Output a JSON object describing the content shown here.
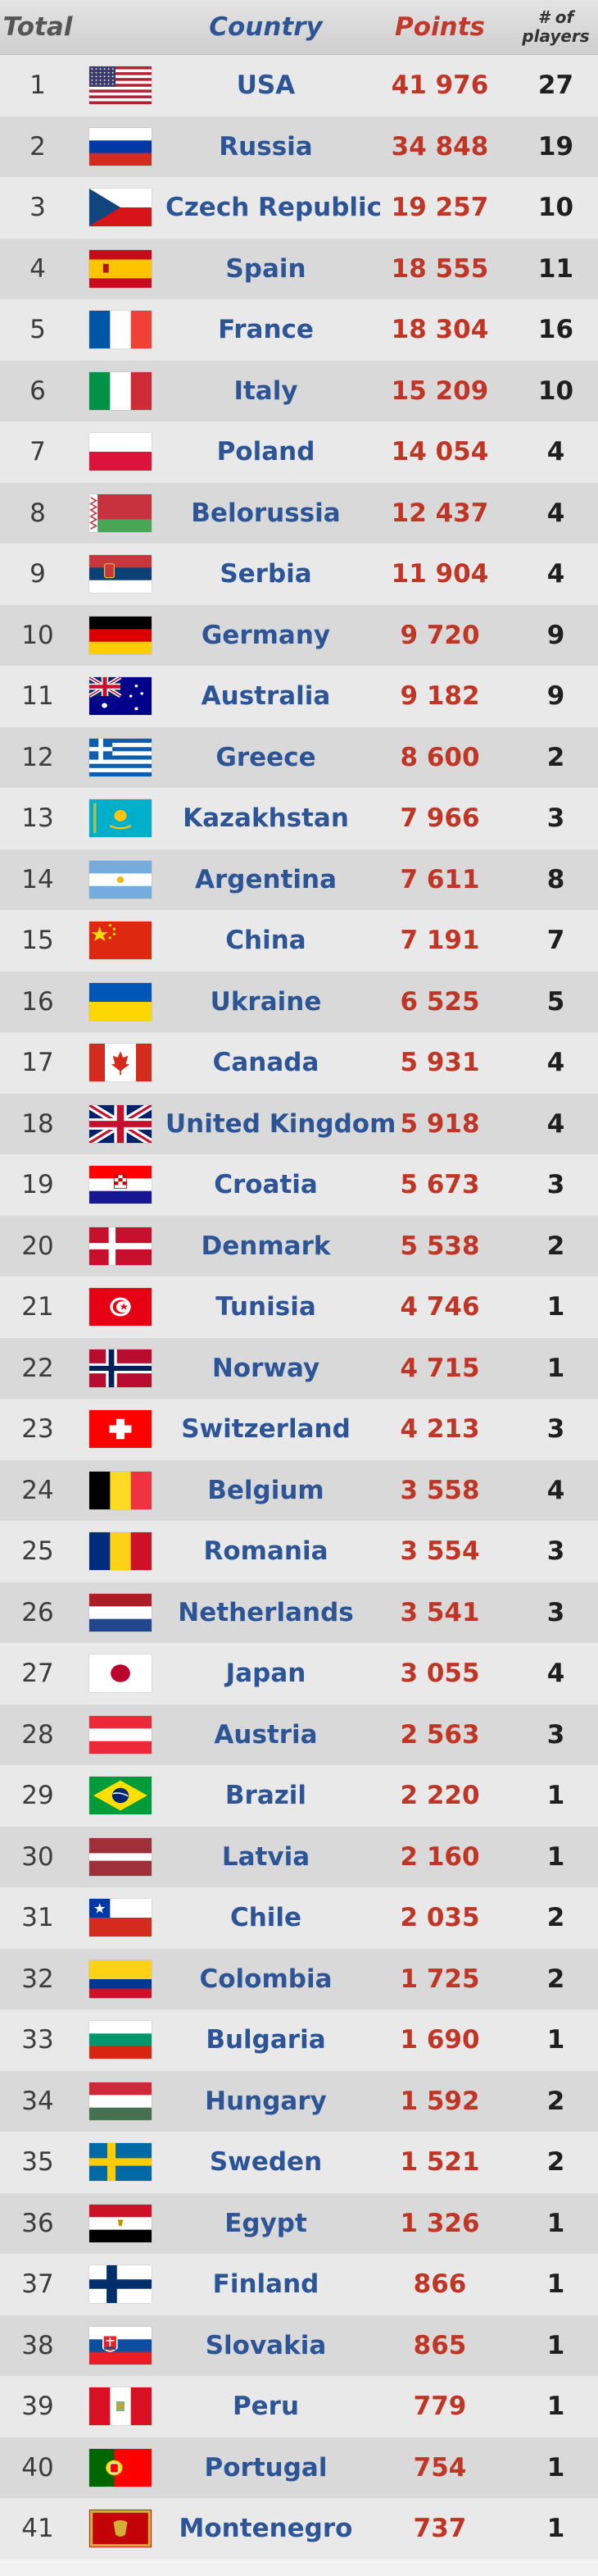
{
  "header": {
    "rank_label": "Total",
    "country_label": "Country",
    "points_label": "Points",
    "players_label": "# of\nplayers"
  },
  "rows": [
    {
      "rank": "1",
      "country": "USA",
      "points": "41 976",
      "players": "27",
      "flag": "usa-flag-icon"
    },
    {
      "rank": "2",
      "country": "Russia",
      "points": "34 848",
      "players": "19",
      "flag": "russia-flag-icon"
    },
    {
      "rank": "3",
      "country": "Czech Republic",
      "points": "19 257",
      "players": "10",
      "flag": "czech-republic-flag-icon"
    },
    {
      "rank": "4",
      "country": "Spain",
      "points": "18 555",
      "players": "11",
      "flag": "spain-flag-icon"
    },
    {
      "rank": "5",
      "country": "France",
      "points": "18 304",
      "players": "16",
      "flag": "france-flag-icon"
    },
    {
      "rank": "6",
      "country": "Italy",
      "points": "15 209",
      "players": "10",
      "flag": "italy-flag-icon"
    },
    {
      "rank": "7",
      "country": "Poland",
      "points": "14 054",
      "players": "4",
      "flag": "poland-flag-icon"
    },
    {
      "rank": "8",
      "country": "Belorussia",
      "points": "12 437",
      "players": "4",
      "flag": "belarus-flag-icon"
    },
    {
      "rank": "9",
      "country": "Serbia",
      "points": "11 904",
      "players": "4",
      "flag": "serbia-flag-icon"
    },
    {
      "rank": "10",
      "country": "Germany",
      "points": "9 720",
      "players": "9",
      "flag": "germany-flag-icon"
    },
    {
      "rank": "11",
      "country": "Australia",
      "points": "9 182",
      "players": "9",
      "flag": "australia-flag-icon"
    },
    {
      "rank": "12",
      "country": "Greece",
      "points": "8 600",
      "players": "2",
      "flag": "greece-flag-icon"
    },
    {
      "rank": "13",
      "country": "Kazakhstan",
      "points": "7 966",
      "players": "3",
      "flag": "kazakhstan-flag-icon"
    },
    {
      "rank": "14",
      "country": "Argentina",
      "points": "7 611",
      "players": "8",
      "flag": "argentina-flag-icon"
    },
    {
      "rank": "15",
      "country": "China",
      "points": "7 191",
      "players": "7",
      "flag": "china-flag-icon"
    },
    {
      "rank": "16",
      "country": "Ukraine",
      "points": "6 525",
      "players": "5",
      "flag": "ukraine-flag-icon"
    },
    {
      "rank": "17",
      "country": "Canada",
      "points": "5 931",
      "players": "4",
      "flag": "canada-flag-icon"
    },
    {
      "rank": "18",
      "country": "United Kingdom",
      "points": "5 918",
      "players": "4",
      "flag": "united-kingdom-flag-icon"
    },
    {
      "rank": "19",
      "country": "Croatia",
      "points": "5 673",
      "players": "3",
      "flag": "croatia-flag-icon"
    },
    {
      "rank": "20",
      "country": "Denmark",
      "points": "5 538",
      "players": "2",
      "flag": "denmark-flag-icon"
    },
    {
      "rank": "21",
      "country": "Tunisia",
      "points": "4 746",
      "players": "1",
      "flag": "tunisia-flag-icon"
    },
    {
      "rank": "22",
      "country": "Norway",
      "points": "4 715",
      "players": "1",
      "flag": "norway-flag-icon"
    },
    {
      "rank": "23",
      "country": "Switzerland",
      "points": "4 213",
      "players": "3",
      "flag": "switzerland-flag-icon"
    },
    {
      "rank": "24",
      "country": "Belgium",
      "points": "3 558",
      "players": "4",
      "flag": "belgium-flag-icon"
    },
    {
      "rank": "25",
      "country": "Romania",
      "points": "3 554",
      "players": "3",
      "flag": "romania-flag-icon"
    },
    {
      "rank": "26",
      "country": "Netherlands",
      "points": "3 541",
      "players": "3",
      "flag": "netherlands-flag-icon"
    },
    {
      "rank": "27",
      "country": "Japan",
      "points": "3 055",
      "players": "4",
      "flag": "japan-flag-icon"
    },
    {
      "rank": "28",
      "country": "Austria",
      "points": "2 563",
      "players": "3",
      "flag": "austria-flag-icon"
    },
    {
      "rank": "29",
      "country": "Brazil",
      "points": "2 220",
      "players": "1",
      "flag": "brazil-flag-icon"
    },
    {
      "rank": "30",
      "country": "Latvia",
      "points": "2 160",
      "players": "1",
      "flag": "latvia-flag-icon"
    },
    {
      "rank": "31",
      "country": "Chile",
      "points": "2 035",
      "players": "2",
      "flag": "chile-flag-icon"
    },
    {
      "rank": "32",
      "country": "Colombia",
      "points": "1 725",
      "players": "2",
      "flag": "colombia-flag-icon"
    },
    {
      "rank": "33",
      "country": "Bulgaria",
      "points": "1 690",
      "players": "1",
      "flag": "bulgaria-flag-icon"
    },
    {
      "rank": "34",
      "country": "Hungary",
      "points": "1 592",
      "players": "2",
      "flag": "hungary-flag-icon"
    },
    {
      "rank": "35",
      "country": "Sweden",
      "points": "1 521",
      "players": "2",
      "flag": "sweden-flag-icon"
    },
    {
      "rank": "36",
      "country": "Egypt",
      "points": "1 326",
      "players": "1",
      "flag": "egypt-flag-icon"
    },
    {
      "rank": "37",
      "country": "Finland",
      "points": "866",
      "players": "1",
      "flag": "finland-flag-icon"
    },
    {
      "rank": "38",
      "country": "Slovakia",
      "points": "865",
      "players": "1",
      "flag": "slovakia-flag-icon"
    },
    {
      "rank": "39",
      "country": "Peru",
      "points": "779",
      "players": "1",
      "flag": "peru-flag-icon"
    },
    {
      "rank": "40",
      "country": "Portugal",
      "points": "754",
      "players": "1",
      "flag": "portugal-flag-icon"
    },
    {
      "rank": "41",
      "country": "Montenegro",
      "points": "737",
      "players": "1",
      "flag": "montenegro-flag-icon"
    }
  ]
}
